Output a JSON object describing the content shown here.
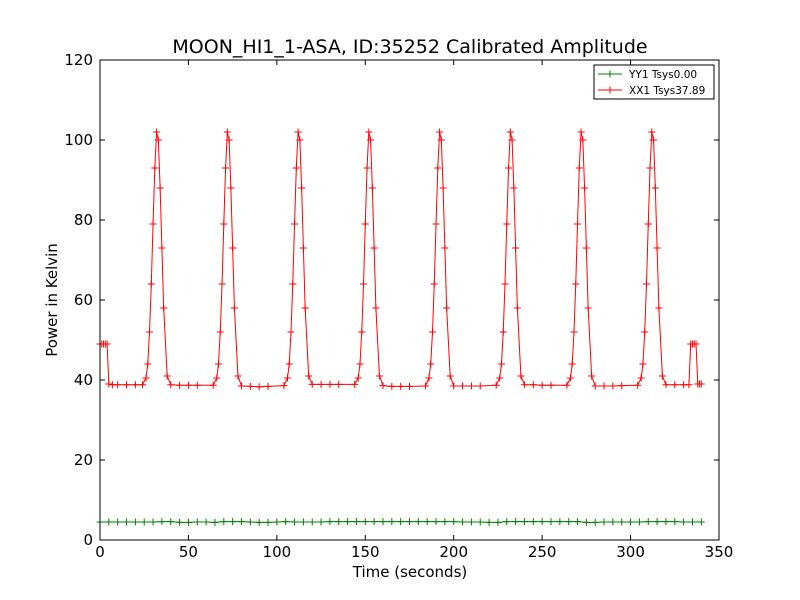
{
  "chart_data": {
    "type": "line",
    "title": "MOON_HI1_1-ASA, ID:35252 Calibrated Amplitude",
    "xlabel": "Time (seconds)",
    "ylabel": "Power in Kelvin",
    "xlim": [
      0,
      350
    ],
    "ylim": [
      0,
      120
    ],
    "xticks": [
      0,
      50,
      100,
      150,
      200,
      250,
      300,
      350
    ],
    "yticks": [
      0,
      20,
      40,
      60,
      80,
      100,
      120
    ],
    "grid": false,
    "legend_position": "top-right",
    "marker": "plus",
    "series": [
      {
        "name": "YY1 Tsys0.00",
        "color": "#008000",
        "x": [
          0,
          5,
          10,
          15,
          20,
          25,
          30,
          35,
          40,
          45,
          50,
          55,
          60,
          65,
          70,
          75,
          80,
          85,
          90,
          95,
          100,
          105,
          110,
          115,
          120,
          125,
          130,
          135,
          140,
          145,
          150,
          155,
          160,
          165,
          170,
          175,
          180,
          185,
          190,
          195,
          200,
          205,
          210,
          215,
          220,
          225,
          230,
          235,
          240,
          245,
          250,
          255,
          260,
          265,
          270,
          275,
          280,
          285,
          290,
          295,
          300,
          305,
          310,
          315,
          320,
          325,
          330,
          335,
          340
        ],
        "values": [
          4.5,
          4.5,
          4.5,
          4.5,
          4.5,
          4.5,
          4.5,
          4.6,
          4.6,
          4.4,
          4.4,
          4.5,
          4.5,
          4.4,
          4.6,
          4.6,
          4.6,
          4.5,
          4.4,
          4.4,
          4.5,
          4.6,
          4.5,
          4.5,
          4.5,
          4.5,
          4.6,
          4.6,
          4.6,
          4.6,
          4.6,
          4.6,
          4.6,
          4.6,
          4.6,
          4.6,
          4.6,
          4.6,
          4.6,
          4.6,
          4.6,
          4.5,
          4.5,
          4.5,
          4.4,
          4.4,
          4.6,
          4.6,
          4.6,
          4.6,
          4.6,
          4.6,
          4.6,
          4.6,
          4.6,
          4.4,
          4.4,
          4.5,
          4.5,
          4.5,
          4.5,
          4.5,
          4.6,
          4.6,
          4.6,
          4.6,
          4.5,
          4.5,
          4.5
        ]
      },
      {
        "name": "XX1 Tsys37.89",
        "color": "#ff0000",
        "x": [
          0,
          1,
          2,
          3,
          4,
          5,
          7,
          10,
          15,
          20,
          24,
          26,
          27,
          28,
          29,
          30,
          31,
          32,
          33,
          34,
          35,
          36,
          38,
          40,
          45,
          50,
          55,
          64,
          66,
          67,
          68,
          69,
          70,
          71,
          72,
          73,
          74,
          75,
          76,
          78,
          80,
          85,
          90,
          95,
          104,
          106,
          107,
          108,
          109,
          110,
          111,
          112,
          113,
          114,
          115,
          116,
          118,
          120,
          125,
          130,
          135,
          144,
          146,
          147,
          148,
          149,
          150,
          151,
          152,
          153,
          154,
          155,
          156,
          158,
          160,
          165,
          170,
          175,
          184,
          186,
          187,
          188,
          189,
          190,
          191,
          192,
          193,
          194,
          195,
          196,
          198,
          200,
          205,
          210,
          215,
          224,
          226,
          227,
          228,
          229,
          230,
          231,
          232,
          233,
          234,
          235,
          236,
          238,
          240,
          245,
          250,
          255,
          264,
          266,
          267,
          268,
          269,
          270,
          271,
          272,
          273,
          274,
          275,
          276,
          278,
          280,
          285,
          290,
          295,
          304,
          306,
          307,
          308,
          309,
          310,
          311,
          312,
          313,
          314,
          315,
          316,
          318,
          320,
          325,
          330,
          333,
          334,
          335,
          336,
          337,
          338,
          339,
          340
        ],
        "values": [
          49.0,
          49.0,
          49.0,
          49.0,
          49.0,
          39.0,
          38.8,
          38.8,
          38.8,
          38.8,
          38.8,
          40.5,
          44,
          52,
          64,
          79,
          93,
          102,
          100,
          88,
          73,
          58,
          41,
          38.8,
          38.7,
          38.7,
          38.7,
          38.7,
          40.5,
          44,
          52,
          64,
          79,
          93,
          102,
          100,
          88,
          73,
          58,
          41,
          38.5,
          38.4,
          38.3,
          38.4,
          38.6,
          40.5,
          44,
          52,
          64,
          79,
          93,
          102,
          100,
          88,
          73,
          58,
          41,
          38.9,
          38.9,
          38.9,
          38.9,
          38.9,
          40.5,
          44,
          52,
          64,
          79,
          93,
          102,
          100,
          88,
          73,
          58,
          41,
          38.6,
          38.4,
          38.4,
          38.4,
          38.5,
          40.5,
          44,
          52,
          64,
          79,
          93,
          102,
          100,
          88,
          73,
          58,
          41,
          38.5,
          38.5,
          38.5,
          38.5,
          38.7,
          40.5,
          44,
          52,
          64,
          79,
          93,
          102,
          100,
          88,
          73,
          58,
          41,
          38.8,
          38.8,
          38.7,
          38.7,
          38.7,
          40.5,
          44,
          52,
          64,
          79,
          93,
          102,
          100,
          88,
          73,
          58,
          41,
          38.5,
          38.5,
          38.5,
          38.6,
          38.7,
          40.5,
          44,
          52,
          64,
          79,
          93,
          102,
          100,
          88,
          73,
          58,
          41,
          38.8,
          38.8,
          38.8,
          38.8,
          49.0,
          49.0,
          49.0,
          49.0,
          39.0,
          39.0,
          39.0
        ]
      }
    ]
  }
}
